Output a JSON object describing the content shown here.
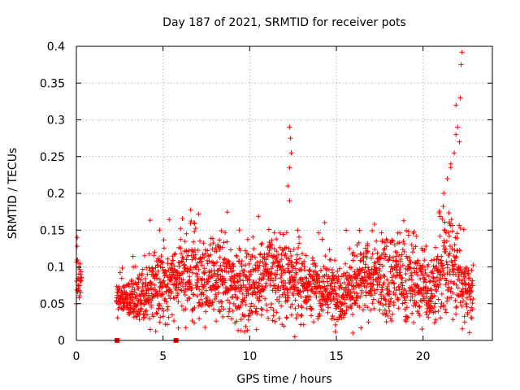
{
  "chart_data": {
    "type": "scatter",
    "title": "Day 187 of 2021, SRMTID for receiver pots",
    "xlabel": "GPS time / hours",
    "ylabel": "SRMTID / TECUs",
    "xlim": [
      0,
      24
    ],
    "ylim": [
      0,
      0.4
    ],
    "xticks": [
      0,
      5,
      10,
      15,
      20
    ],
    "xtick_labels": [
      "0",
      "5",
      "10",
      "15",
      "20"
    ],
    "yticks": [
      0,
      0.05,
      0.1,
      0.15,
      0.2,
      0.25,
      0.3,
      0.35,
      0.4
    ],
    "ytick_labels": [
      "0",
      "0.05",
      "0.1",
      "0.15",
      "0.2",
      "0.25",
      "0.3",
      "0.35",
      "0.4"
    ],
    "grid": true,
    "series": [
      {
        "name": "SRMTID",
        "marker": "plus",
        "color": "#ff0000",
        "density_anchors": [
          {
            "x": 0.0,
            "y": 0.09,
            "spread": 0.015
          },
          {
            "x": 2.4,
            "y": 0.06,
            "spread": 0.012
          },
          {
            "x": 3.5,
            "y": 0.055,
            "spread": 0.015
          },
          {
            "x": 5.0,
            "y": 0.08,
            "spread": 0.025
          },
          {
            "x": 6.8,
            "y": 0.09,
            "spread": 0.03
          },
          {
            "x": 9.5,
            "y": 0.07,
            "spread": 0.025
          },
          {
            "x": 11.5,
            "y": 0.09,
            "spread": 0.03
          },
          {
            "x": 13.5,
            "y": 0.075,
            "spread": 0.02
          },
          {
            "x": 15.0,
            "y": 0.065,
            "spread": 0.02
          },
          {
            "x": 17.0,
            "y": 0.085,
            "spread": 0.025
          },
          {
            "x": 18.5,
            "y": 0.09,
            "spread": 0.03
          },
          {
            "x": 20.5,
            "y": 0.07,
            "spread": 0.025
          },
          {
            "x": 21.5,
            "y": 0.11,
            "spread": 0.04
          },
          {
            "x": 22.9,
            "y": 0.06,
            "spread": 0.02
          }
        ],
        "gaps": [
          [
            0.3,
            2.3
          ]
        ],
        "notable_points": [
          {
            "x": 0.05,
            "y": 0.14
          },
          {
            "x": 0.1,
            "y": 0.075
          },
          {
            "x": 4.8,
            "y": 0.15
          },
          {
            "x": 6.8,
            "y": 0.16
          },
          {
            "x": 9.4,
            "y": 0.15
          },
          {
            "x": 12.3,
            "y": 0.29
          },
          {
            "x": 12.35,
            "y": 0.275
          },
          {
            "x": 12.4,
            "y": 0.255
          },
          {
            "x": 12.3,
            "y": 0.235
          },
          {
            "x": 12.2,
            "y": 0.21
          },
          {
            "x": 12.3,
            "y": 0.19
          },
          {
            "x": 12.6,
            "y": 0.005
          },
          {
            "x": 17.2,
            "y": 0.158
          },
          {
            "x": 21.2,
            "y": 0.2
          },
          {
            "x": 21.4,
            "y": 0.22
          },
          {
            "x": 21.6,
            "y": 0.24
          },
          {
            "x": 21.8,
            "y": 0.255
          },
          {
            "x": 21.9,
            "y": 0.28
          },
          {
            "x": 21.9,
            "y": 0.32
          },
          {
            "x": 22.0,
            "y": 0.29
          },
          {
            "x": 22.15,
            "y": 0.33
          },
          {
            "x": 22.2,
            "y": 0.375
          },
          {
            "x": 22.25,
            "y": 0.392
          },
          {
            "x": 22.1,
            "y": 0.27
          },
          {
            "x": 22.4,
            "y": 0.025
          }
        ],
        "zero_markers": [
          {
            "x": 2.35,
            "y": 0.0
          },
          {
            "x": 5.75,
            "y": 0.0
          }
        ]
      }
    ]
  }
}
